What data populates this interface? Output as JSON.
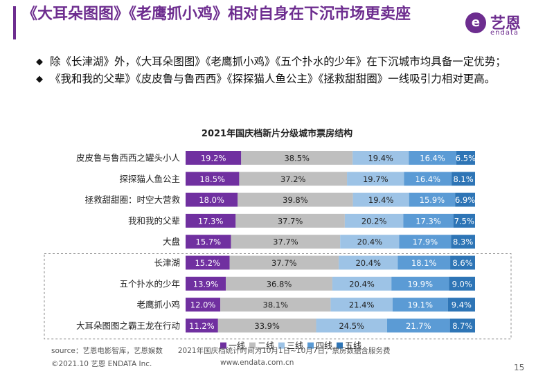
{
  "header": {
    "title": "《大耳朵图图》《老鹰抓小鸡》相对自身在下沉市场更卖座",
    "logo_text": "艺恩",
    "logo_sub": "endata"
  },
  "bullets": [
    "除《长津湖》外，《大耳朵图图》《老鹰抓小鸡》《五个扑水的少年》在下沉城市均具备一定优势；",
    "《我和我的父辈》《皮皮鲁与鲁西西》《探探猫人鱼公主》《拯救甜甜圈》一线吸引力相对更高。"
  ],
  "chart_data": {
    "type": "bar",
    "stacked": true,
    "orientation": "horizontal",
    "normalized": true,
    "title": "2021年国庆档新片分级城市票房结构",
    "categories": [
      "皮皮鲁与鲁西西之罐头小人",
      "探探猫人鱼公主",
      "拯救甜甜圈：时空大营救",
      "我和我的父辈",
      "大盘",
      "长津湖",
      "五个扑水的少年",
      "老鹰抓小鸡",
      "大耳朵图图之霸王龙在行动"
    ],
    "series": [
      {
        "name": "一线",
        "color": "#7030a0",
        "values": [
          19.2,
          18.5,
          18.0,
          17.3,
          15.7,
          15.2,
          13.9,
          12.0,
          11.2
        ]
      },
      {
        "name": "二线",
        "color": "#bfbfbf",
        "values": [
          38.5,
          37.2,
          39.8,
          37.7,
          37.7,
          37.7,
          36.8,
          38.1,
          33.9
        ]
      },
      {
        "name": "三线",
        "color": "#9dc3e6",
        "values": [
          19.4,
          19.7,
          19.4,
          20.2,
          20.4,
          20.4,
          20.4,
          21.4,
          24.5
        ]
      },
      {
        "name": "四线",
        "color": "#5b9bd5",
        "values": [
          16.4,
          16.4,
          15.9,
          17.3,
          17.9,
          18.1,
          19.9,
          19.1,
          21.7
        ]
      },
      {
        "name": "五线",
        "color": "#2e75b6",
        "values": [
          6.5,
          8.1,
          6.9,
          7.5,
          8.3,
          8.6,
          9.0,
          9.4,
          8.7
        ]
      }
    ],
    "value_suffix": "%",
    "legend_position": "bottom",
    "highlighted_categories": [
      "长津湖",
      "五个扑水的少年",
      "老鹰抓小鸡",
      "大耳朵图图之霸王龙在行动"
    ]
  },
  "footer": {
    "source": "source：艺恩电影智库，艺恩娱数",
    "note": "2021年国庆档统计时间为10月1日~10月7日，票房数据含服务费",
    "copyright": "©2021.10 艺恩 ENDATA Inc.",
    "url": "www.endata.com.cn",
    "page": "15"
  }
}
